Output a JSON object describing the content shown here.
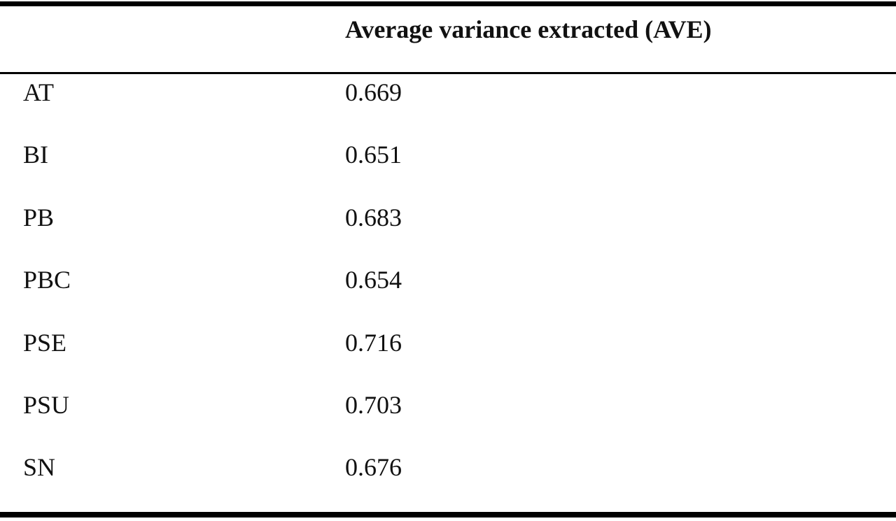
{
  "table": {
    "header": {
      "col1": "",
      "col2": "Average variance extracted (AVE)"
    },
    "rows": [
      {
        "construct": "AT",
        "ave": "0.669"
      },
      {
        "construct": "BI",
        "ave": "0.651"
      },
      {
        "construct": "PB",
        "ave": "0.683"
      },
      {
        "construct": "PBC",
        "ave": "0.654"
      },
      {
        "construct": "PSE",
        "ave": "0.716"
      },
      {
        "construct": "PSU",
        "ave": "0.703"
      },
      {
        "construct": "SN",
        "ave": "0.676"
      }
    ]
  }
}
